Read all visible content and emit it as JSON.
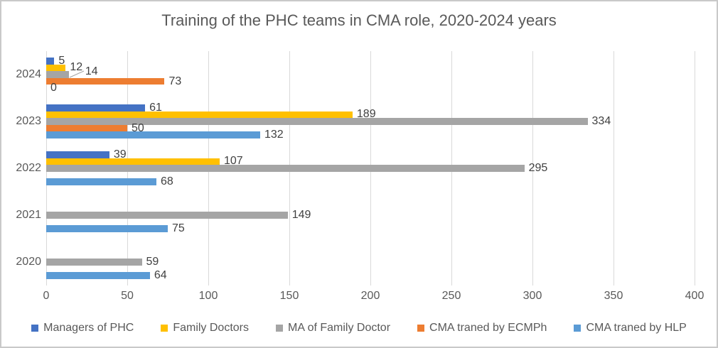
{
  "title": "Training of the PHC teams in CMA role, 2020-2024 years",
  "chart_data": {
    "type": "bar",
    "orientation": "horizontal",
    "title": "Training of the PHC teams in CMA role, 2020-2024 years",
    "categories": [
      "2024",
      "2023",
      "2022",
      "2021",
      "2020"
    ],
    "series": [
      {
        "name": "Managers of PHC",
        "color": "#4472C4",
        "values": [
          5,
          61,
          39,
          null,
          null
        ]
      },
      {
        "name": "Family Doctors",
        "color": "#FFC000",
        "values": [
          12,
          189,
          107,
          null,
          null
        ]
      },
      {
        "name": "MA of Family Doctor",
        "color": "#A5A5A5",
        "values": [
          14,
          334,
          295,
          149,
          59
        ]
      },
      {
        "name": "CMA traned by ECMPh",
        "color": "#ED7D31",
        "values": [
          73,
          50,
          null,
          null,
          null
        ]
      },
      {
        "name": "CMA traned by HLP",
        "color": "#5B9BD5",
        "values": [
          0,
          132,
          68,
          75,
          64
        ]
      }
    ],
    "x_axis": {
      "min": 0,
      "max": 400,
      "step": 50,
      "ticks": [
        "0",
        "50",
        "100",
        "150",
        "200",
        "250",
        "300",
        "350",
        "400"
      ]
    },
    "xlabel": "",
    "ylabel": "",
    "grid": true,
    "data_labels": true,
    "legend_position": "bottom",
    "callout": {
      "category": "2024",
      "series": "MA of Family Doctor"
    }
  },
  "styles": {
    "background": "#ffffff",
    "border_color": "#c9c9c9",
    "grid_color": "#d9d9d9",
    "axis_text_color": "#595959",
    "title_color": "#595959",
    "data_label_color": "#404040"
  }
}
